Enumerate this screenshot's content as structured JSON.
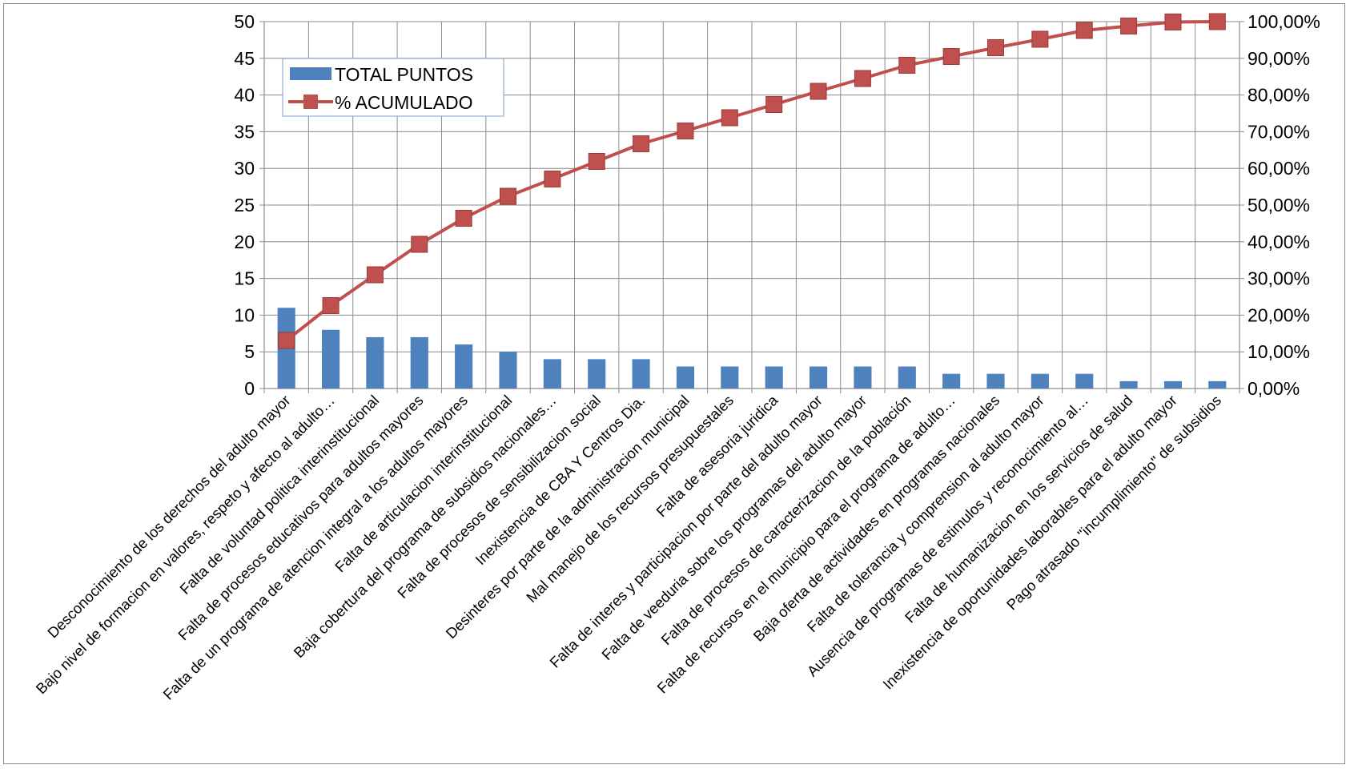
{
  "chart_data": {
    "type": "bar",
    "categories": [
      "Desconocimiento de los derechos del adulto mayor",
      "Bajo nivel de formacion en valores, respeto y afecto al adulto…",
      "Falta de voluntad politica  interinstitucional",
      "Falta de procesos educativos para adultos mayores",
      "Falta de un programa de atencion integral a los adultos mayores",
      "Falta de articulacion interinstitucional",
      "Baja cobertura del programa de subsidios nacionales…",
      "Falta de procesos de sensibilizacion social",
      "Inexistencia de CBA Y Centros Dia.",
      "Desinteres por parte de la administracion municipal",
      "Mal manejo de los recursos presupuestales",
      "Falta de asesoria juridica",
      "Falta de interes  y participacion por parte del adulto mayor",
      "Falta de veeduria sobre los programas del adulto mayor",
      "Falta de procesos de caracterizacion de la población",
      "Falta de recursos en el municipio para el programa de adulto…",
      "Baja oferta de actividades en programas nacionales",
      "Falta de tolerancia y comprension al adulto mayor",
      "Ausencia de programas de estimulos y reconocimiento al…",
      "Falta de humanizacion en los servicios de salud",
      "Inexistencia de oportunidades laborables para el adulto mayor",
      "Pago atrasado \"incumplimiento\" de subsidios"
    ],
    "series": [
      {
        "name": "TOTAL PUNTOS",
        "kind": "bar",
        "axis": "left",
        "color": "#4f81bd",
        "values": [
          11,
          8,
          7,
          7,
          6,
          5,
          4,
          4,
          4,
          3,
          3,
          3,
          3,
          3,
          3,
          2,
          2,
          2,
          2,
          1,
          1,
          1
        ]
      },
      {
        "name": "% ACUMULADO",
        "kind": "line",
        "axis": "right",
        "color": "#c0504d",
        "values": [
          13.1,
          22.6,
          31.0,
          39.3,
          46.4,
          52.4,
          57.1,
          61.9,
          66.7,
          70.2,
          73.8,
          77.4,
          81.0,
          84.5,
          88.1,
          90.5,
          92.9,
          95.2,
          97.6,
          98.8,
          99.9,
          100.0
        ]
      }
    ],
    "y_left": {
      "ylim": [
        0,
        50
      ],
      "ticks": [
        "0",
        "5",
        "10",
        "15",
        "20",
        "25",
        "30",
        "35",
        "40",
        "45",
        "50"
      ]
    },
    "y_right": {
      "ylim": [
        0,
        100
      ],
      "ticks": [
        "0,00%",
        "10,00%",
        "20,00%",
        "30,00%",
        "40,00%",
        "50,00%",
        "60,00%",
        "70,00%",
        "80,00%",
        "90,00%",
        "100,00%"
      ]
    },
    "grid": true,
    "legend": {
      "placement": "top-left",
      "entries": [
        "TOTAL PUNTOS",
        "% ACUMULADO"
      ]
    },
    "title": "",
    "xlabel": "",
    "ylabel": ""
  }
}
